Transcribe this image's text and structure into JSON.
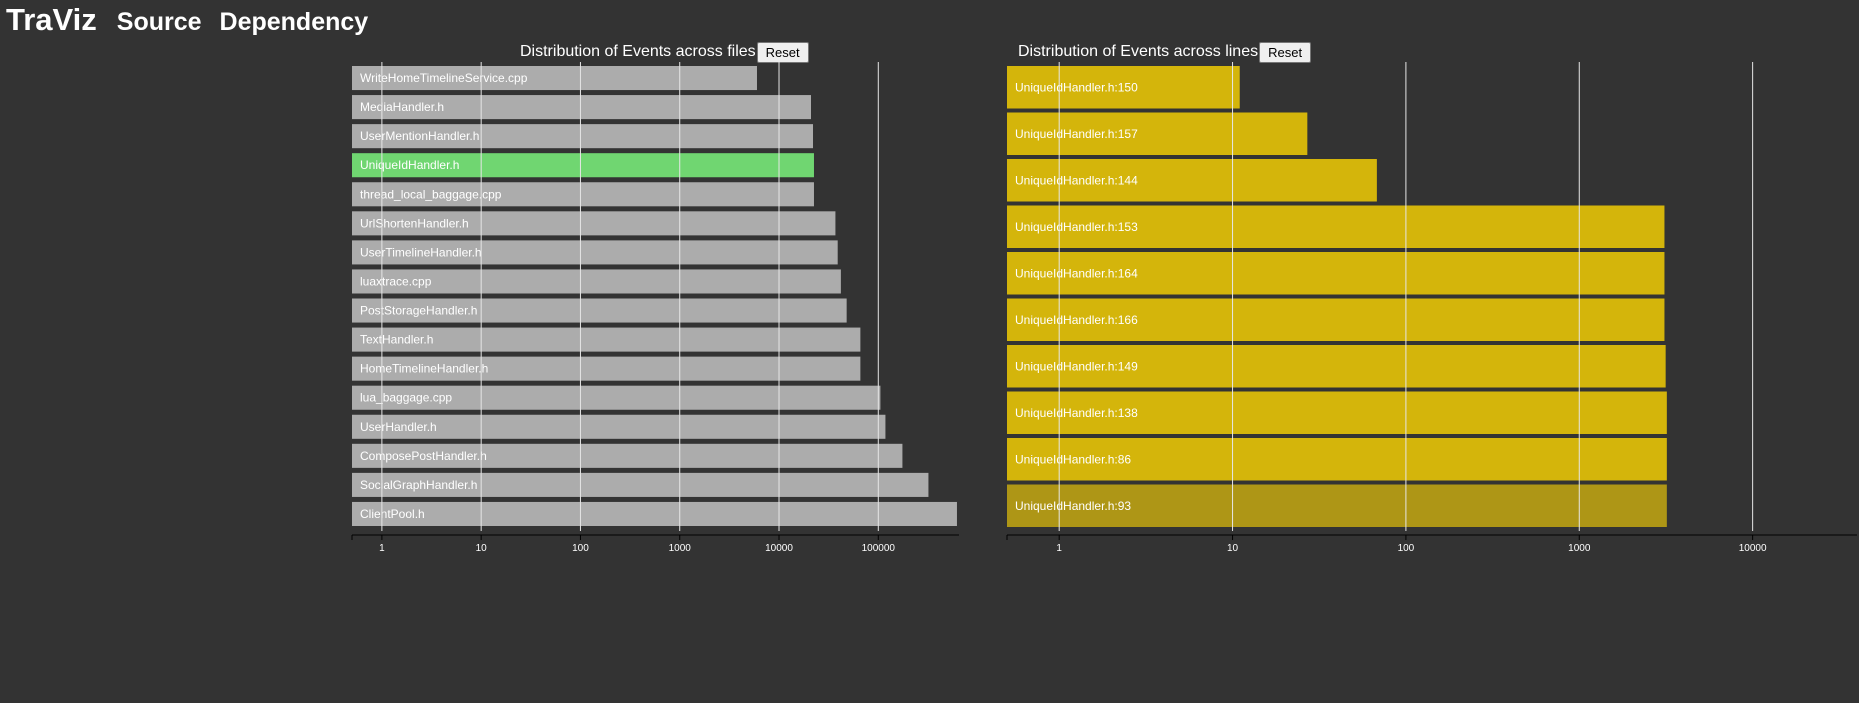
{
  "nav": {
    "brand": "TraViz",
    "links": [
      "Source",
      "Dependency"
    ]
  },
  "colors": {
    "background": "#333333",
    "file_bar": "#acacac",
    "file_bar_selected": "#70d671",
    "line_bar": "#d4b50b",
    "line_bar_hovered": "#ae9616",
    "gridline": "#e6e6e6"
  },
  "files_chart": {
    "title": "Distribution of Events across files",
    "reset_label": "Reset",
    "selected": "UniqueIdHandler.h",
    "chart_data": {
      "type": "bar",
      "orientation": "horizontal",
      "scale": "log",
      "title": "Distribution of Events across files",
      "xlim": [
        0.5,
        650000
      ],
      "ticks": [
        1,
        10,
        100,
        1000,
        10000,
        100000
      ],
      "tick_labels": [
        "1",
        "10",
        "100",
        "1000",
        "10000",
        "100000"
      ],
      "categories": [
        "WriteHomeTimelineService.cpp",
        "MediaHandler.h",
        "UserMentionHandler.h",
        "UniqueIdHandler.h",
        "thread_local_baggage.cpp",
        "UrlShortenHandler.h",
        "UserTimelineHandler.h",
        "luaxtrace.cpp",
        "PostStorageHandler.h",
        "TextHandler.h",
        "HomeTimelineHandler.h",
        "lua_baggage.cpp",
        "UserHandler.h",
        "ComposePostHandler.h",
        "SocialGraphHandler.h",
        "ClientPool.h"
      ],
      "values": [
        6000,
        21000,
        22000,
        22500,
        22500,
        37000,
        39000,
        42000,
        48000,
        66000,
        66000,
        105000,
        118000,
        175000,
        320000,
        620000
      ],
      "grid": true
    }
  },
  "lines_chart": {
    "title": "Distribution of Events across lines",
    "reset_label": "Reset",
    "hovered": "UniqueIdHandler.h:93",
    "chart_data": {
      "type": "bar",
      "orientation": "horizontal",
      "scale": "log",
      "title": "Distribution of Events across lines",
      "xlim": [
        0.5,
        40000
      ],
      "ticks": [
        1,
        10,
        100,
        1000,
        10000
      ],
      "tick_labels": [
        "1",
        "10",
        "100",
        "1000",
        "10000"
      ],
      "categories": [
        "UniqueIdHandler.h:150",
        "UniqueIdHandler.h:157",
        "UniqueIdHandler.h:144",
        "UniqueIdHandler.h:153",
        "UniqueIdHandler.h:164",
        "UniqueIdHandler.h:166",
        "UniqueIdHandler.h:149",
        "UniqueIdHandler.h:138",
        "UniqueIdHandler.h:86",
        "UniqueIdHandler.h:93"
      ],
      "values": [
        11,
        27,
        68,
        3100,
        3100,
        3100,
        3150,
        3200,
        3200,
        3200
      ],
      "grid": true
    }
  }
}
